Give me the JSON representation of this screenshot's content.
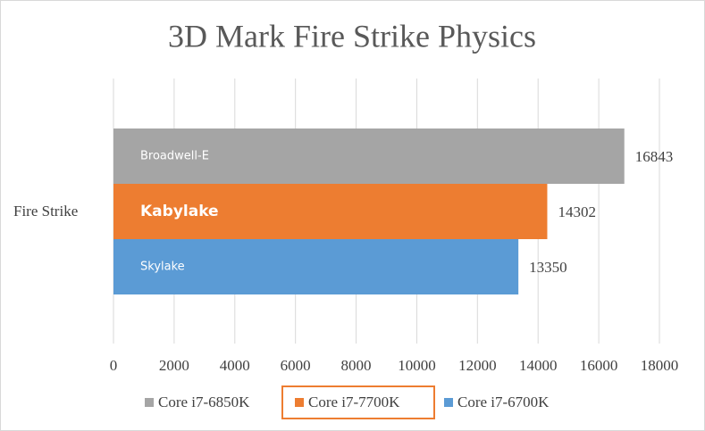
{
  "chart_data": {
    "type": "bar",
    "orientation": "horizontal",
    "title": "3D Mark Fire Strike Physics",
    "categories": [
      "Fire Strike"
    ],
    "series": [
      {
        "name": "Core i7-6850K",
        "label": "Broadwell-E",
        "color": "#a5a5a5",
        "values": [
          16843
        ]
      },
      {
        "name": "Core i7-7700K",
        "label": "Kabylake",
        "color": "#ed7d31",
        "values": [
          14302
        ]
      },
      {
        "name": "Core i7-6700K",
        "label": "Skylake",
        "color": "#5b9bd5",
        "values": [
          13350
        ]
      }
    ],
    "xlim": [
      0,
      18000
    ],
    "xticks": [
      0,
      2000,
      4000,
      6000,
      8000,
      10000,
      12000,
      14000,
      16000,
      18000
    ],
    "grid": true,
    "legend": "bottom"
  }
}
